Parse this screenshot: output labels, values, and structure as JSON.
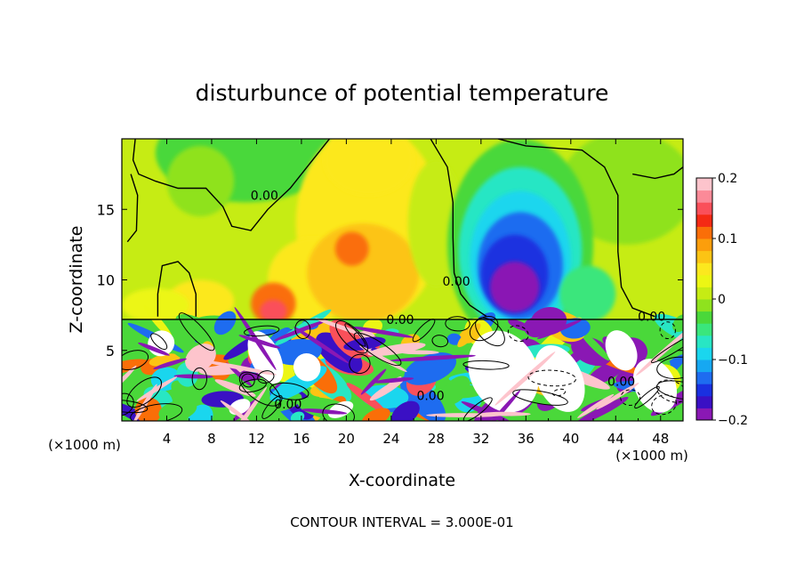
{
  "chart_data": {
    "type": "heatmap",
    "title": "disturbunce of potential temperature",
    "xlabel": "X-coordinate",
    "ylabel": "Z-coordinate",
    "x_unit_label": "(×1000 m)",
    "x_unit_label_right": "(×1000 m)",
    "xlim": [
      0,
      50
    ],
    "ylim": [
      0,
      20
    ],
    "x_ticks": [
      4,
      8,
      12,
      16,
      20,
      24,
      28,
      32,
      36,
      40,
      44,
      48
    ],
    "y_ticks": [
      5,
      10,
      15
    ],
    "colorbar": {
      "min": -0.2,
      "max": 0.2,
      "tick_values": [
        0.2,
        0.1,
        0,
        -0.1,
        -0.2
      ],
      "tick_labels": [
        "0.2",
        "0.1",
        "0",
        "−0.1",
        "−0.2"
      ],
      "levels": [
        "#8a18b4",
        "#3a10c4",
        "#1a30e0",
        "#1e6cf0",
        "#16a8f2",
        "#1ad6ee",
        "#28e6c4",
        "#3ae67c",
        "#4ad83a",
        "#8fe21e",
        "#c6ec14",
        "#ecf614",
        "#fce81e",
        "#fcc414",
        "#fc9e0c",
        "#fa6e08",
        "#f42a14",
        "#fa505a",
        "#fb8a98",
        "#fdc4cc"
      ]
    },
    "contour_interval_text": "CONTOUR INTERVAL = 3.000E-01",
    "contour_labels": [
      {
        "text": "0.00",
        "x": 12.7,
        "z": 16.0
      },
      {
        "text": "0.00",
        "x": 29.8,
        "z": 9.9
      },
      {
        "text": "0.00",
        "x": 24.8,
        "z": 7.2
      },
      {
        "text": "0.00",
        "x": 47.2,
        "z": 7.4
      },
      {
        "text": "0.00",
        "x": 14.8,
        "z": 1.2
      },
      {
        "text": "0.00",
        "x": 27.5,
        "z": 1.8
      },
      {
        "text": "0.00",
        "x": 44.5,
        "z": 2.8
      }
    ],
    "features": [
      {
        "kind": "warm-core",
        "x": 20.5,
        "z": 12.0,
        "max": 0.12
      },
      {
        "kind": "warm-band",
        "x": 12.5,
        "z": 8.0,
        "max": 0.14
      },
      {
        "kind": "cold-core",
        "x": 35.0,
        "z": 11.0,
        "min": -0.2
      },
      {
        "kind": "cool-upper-left",
        "x": 8.0,
        "z": 19.0,
        "min": -0.04
      },
      {
        "kind": "turbulent-layer",
        "z_top": 7.2,
        "range": [
          -0.2,
          0.2
        ]
      }
    ]
  }
}
